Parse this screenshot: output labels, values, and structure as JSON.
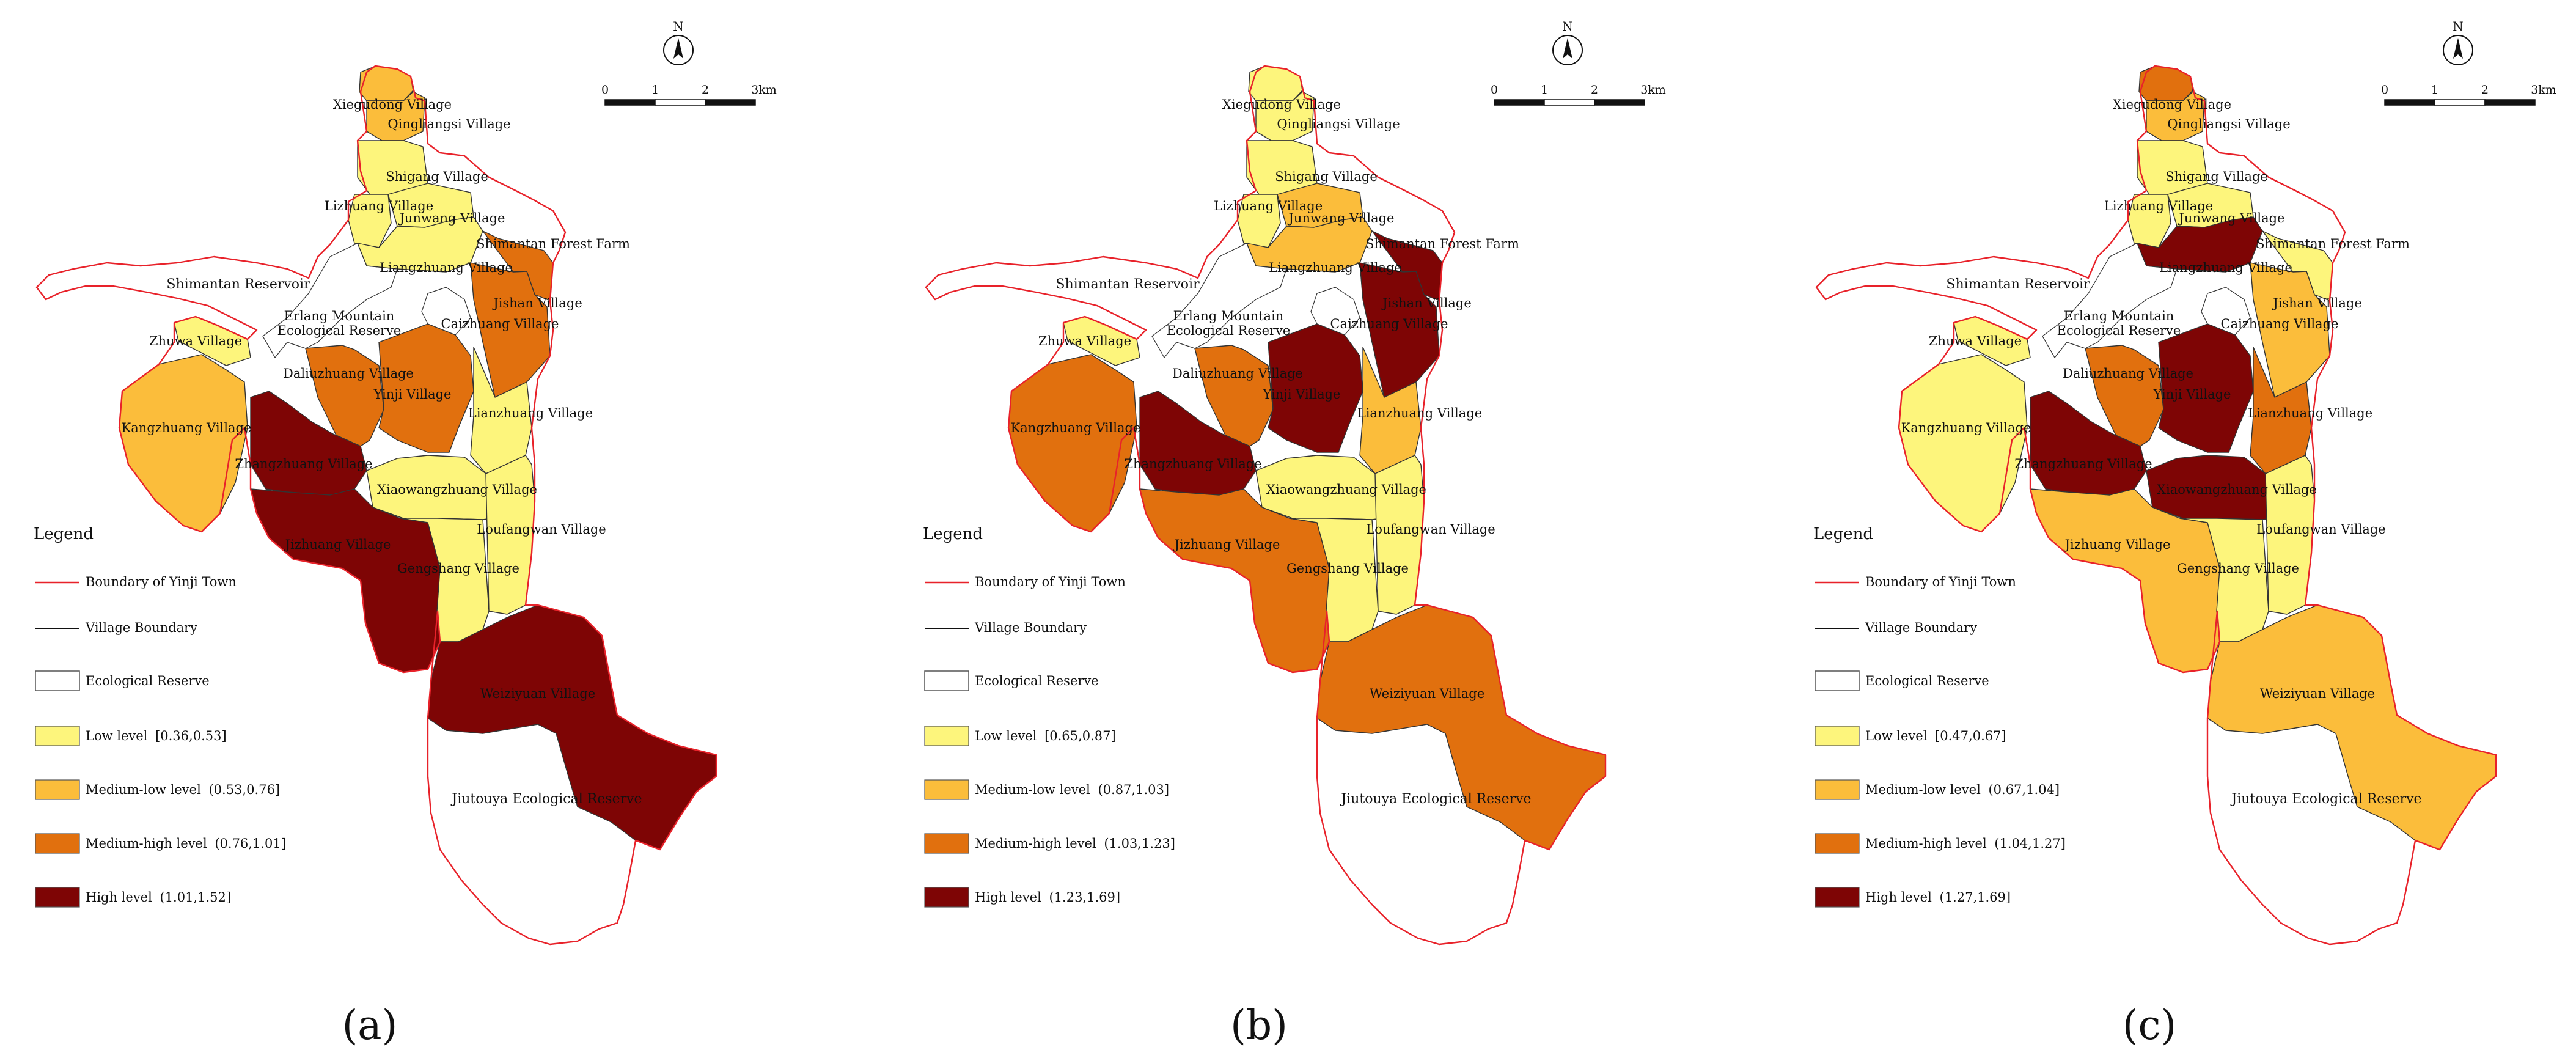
{
  "colors": {
    "boundary": "#e8222a",
    "village_line": "#333333",
    "reserve": "#ffffff",
    "low": "#fdf57c",
    "medium_low": "#fbbd3b",
    "medium_high": "#e1700e",
    "high": "#7e0505"
  },
  "north_label": "N",
  "scale_labels": [
    "0",
    "1",
    "2",
    "3km"
  ],
  "common_labels": {
    "shimantan_reservoir": "Shimantan Reservoir",
    "erlang_reserve": "Erlang Mountain\nEcological Reserve",
    "shimantan_forest_farm": "Shimantan Forest Farm",
    "jiutouya_reserve": "Jiutouya Ecological Reserve"
  },
  "legend": {
    "title": "Legend",
    "boundary": "Boundary of Yinji Town",
    "village_boundary": "Village Boundary",
    "ecological_reserve": "Ecological Reserve"
  },
  "level_names": [
    "Low level",
    "Medium-low level",
    "Medium-high level",
    "High level"
  ],
  "village_names": {
    "xiegudong": "Xiegudong Village",
    "qingliangsi": "Qingliangsi Village",
    "shigang": "Shigang Village",
    "lizhuang": "Lizhuang Village",
    "junwang": "Junwang Village",
    "liangzhuang": "Liangzhuang Village",
    "jishan": "Jishan Village",
    "caizhuang": "Caizhuang Village",
    "zhuwa": "Zhuwa Village",
    "daliuzhuang": "Daliuzhuang Village",
    "yinji": "Yinji Village",
    "lianzhuang": "Lianzhuang Village",
    "kangzhuang": "Kangzhuang Village",
    "zhangzhuang": "Zhangzhuang Village",
    "xiaowangzhuang": "Xiaowangzhuang Village",
    "loufangwan": "Loufangwan Village",
    "jizhuang": "Jizhuang Village",
    "gengshang": "Gengshang Village",
    "weiziyuan": "Weiziyuan Village"
  },
  "panels": [
    {
      "label": "(a)",
      "ranges": [
        "[0.36,0.53]",
        "(0.53,0.76]",
        "(0.76,1.01]",
        "(1.01,1.52]"
      ],
      "levels": {
        "xiegudong": 1,
        "qingliangsi": 1,
        "shigang": 0,
        "lizhuang": 0,
        "junwang": 0,
        "liangzhuang": 0,
        "jishan": 2,
        "caizhuang": 2,
        "zhuwa": 0,
        "daliuzhuang": 2,
        "yinji": 2,
        "lianzhuang": 0,
        "kangzhuang": 1,
        "zhangzhuang": 3,
        "xiaowangzhuang": 0,
        "loufangwan": 0,
        "jizhuang": 3,
        "gengshang": 0,
        "weiziyuan": 3
      }
    },
    {
      "label": "(b)",
      "ranges": [
        "[0.65,0.87]",
        "(0.87,1.03]",
        "(1.03,1.23]",
        "(1.23,1.69]"
      ],
      "levels": {
        "xiegudong": 0,
        "qingliangsi": 0,
        "shigang": 0,
        "lizhuang": 0,
        "junwang": 1,
        "liangzhuang": 1,
        "jishan": 3,
        "caizhuang": 3,
        "zhuwa": 0,
        "daliuzhuang": 2,
        "yinji": 3,
        "lianzhuang": 1,
        "kangzhuang": 2,
        "zhangzhuang": 3,
        "xiaowangzhuang": 0,
        "loufangwan": 0,
        "jizhuang": 2,
        "gengshang": 0,
        "weiziyuan": 2
      }
    },
    {
      "label": "(c)",
      "ranges": [
        "[0.47,0.67]",
        "(0.67,1.04]",
        "(1.04,1.27]",
        "(1.27,1.69]"
      ],
      "levels": {
        "xiegudong": 2,
        "qingliangsi": 1,
        "shigang": 0,
        "lizhuang": 0,
        "junwang": 0,
        "liangzhuang": 3,
        "jishan": 0,
        "caizhuang": 1,
        "zhuwa": 0,
        "daliuzhuang": 2,
        "yinji": 3,
        "lianzhuang": 2,
        "kangzhuang": 0,
        "zhangzhuang": 3,
        "xiaowangzhuang": 3,
        "loufangwan": 0,
        "jizhuang": 1,
        "gengshang": 0,
        "weiziyuan": 1
      }
    }
  ]
}
